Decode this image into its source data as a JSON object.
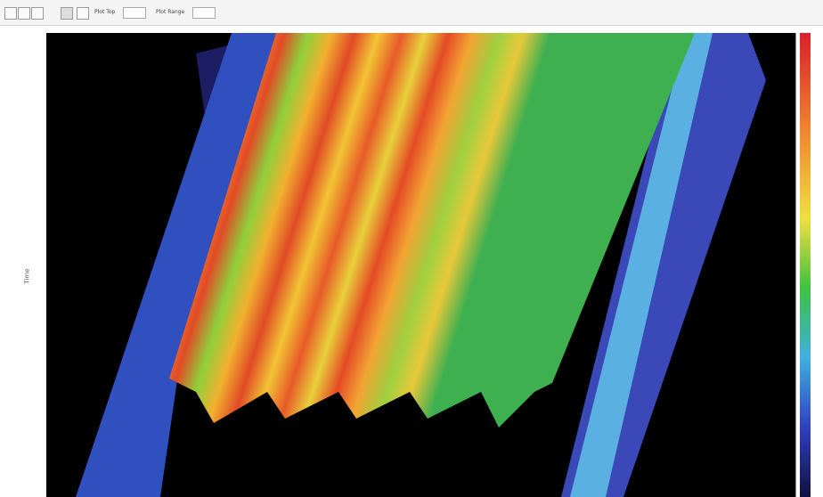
{
  "toolbar": {
    "plot_top_label": "Plot Top",
    "plot_range_label": "Plot Range"
  },
  "plot": {
    "y_axis_label": "Time"
  }
}
